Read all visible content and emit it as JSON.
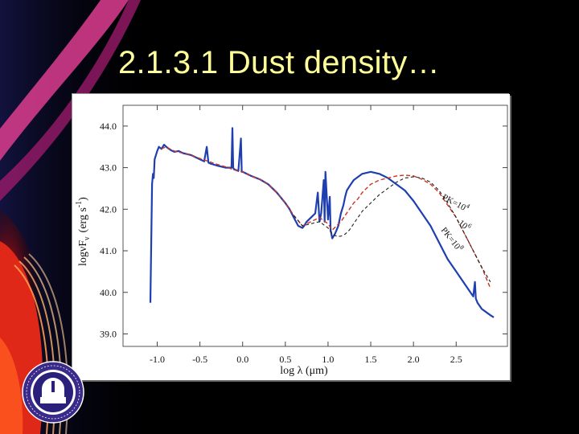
{
  "slide": {
    "title": "2.1.3.1 Dust density…"
  },
  "colors": {
    "title": "#ffff99",
    "background": "#000000",
    "blue": "#1f3fb0",
    "red": "#cc3322",
    "black": "#222222"
  },
  "logo": {
    "name": "university-seal"
  },
  "chart_data": {
    "type": "line",
    "xlabel": "log  λ  (μm)",
    "ylabel": "logνF",
    "ylabel_sub": "ν",
    "ylabel_units": "(erg s",
    "ylabel_units_sup": "-1",
    "ylabel_units_close": ")",
    "xlim": [
      -1.4,
      3.1
    ],
    "ylim": [
      38.7,
      44.5
    ],
    "xticks": [
      -1.0,
      -0.5,
      0.0,
      0.5,
      1.0,
      1.5,
      2.0,
      2.5
    ],
    "xtick_labels": [
      "-1.0",
      "-0.5",
      "0.0",
      "0.5",
      "1.0",
      "1.5",
      "2.0",
      "2.5"
    ],
    "yticks": [
      44,
      43,
      42,
      41,
      40,
      39
    ],
    "ytick_labels": [
      "44.0",
      "43.0",
      "42.0",
      "41.0",
      "40.0",
      "39.0"
    ],
    "annotations": [
      {
        "text": "PK=10",
        "sup": "4",
        "x": 2.33,
        "y": 42.25,
        "angle": 28
      },
      {
        "text": "10",
        "sup": "6",
        "x": 2.52,
        "y": 41.65,
        "angle": 40
      },
      {
        "text": "PK=10",
        "sup": "8",
        "x": 2.32,
        "y": 41.5,
        "angle": 52
      }
    ],
    "series": [
      {
        "color": "#1f3fb0",
        "x": [
          -1.08,
          -1.06,
          -1.05,
          -1.04,
          -1.03,
          -1.0,
          -0.98,
          -0.95,
          -0.92,
          -0.88,
          -0.84,
          -0.8,
          -0.75,
          -0.7,
          -0.6,
          -0.5,
          -0.45,
          -0.42,
          -0.4,
          -0.38,
          -0.3,
          -0.2,
          -0.13,
          -0.12,
          -0.11,
          -0.1,
          -0.05,
          -0.02,
          -0.01,
          0.0,
          0.1,
          0.2,
          0.3,
          0.4,
          0.5,
          0.55,
          0.6,
          0.65,
          0.7,
          0.72,
          0.75,
          0.8,
          0.85,
          0.88,
          0.9,
          0.92,
          0.95,
          0.96,
          0.97,
          1.0,
          1.02,
          1.03,
          1.05,
          1.08,
          1.1,
          1.12,
          1.15,
          1.18,
          1.2,
          1.22,
          1.25,
          1.3,
          1.4,
          1.5,
          1.6,
          1.7,
          1.8,
          1.9,
          2.0,
          2.1,
          2.2,
          2.3,
          2.4,
          2.5,
          2.6,
          2.7,
          2.72,
          2.73,
          2.75,
          2.8,
          2.9,
          2.94
        ],
        "y": [
          39.75,
          42.6,
          42.85,
          42.75,
          43.2,
          43.4,
          43.5,
          43.45,
          43.55,
          43.48,
          43.42,
          43.38,
          43.4,
          43.35,
          43.3,
          43.2,
          43.15,
          43.5,
          43.12,
          43.1,
          43.05,
          43.0,
          43.0,
          43.95,
          43.0,
          42.96,
          42.92,
          43.7,
          42.9,
          42.9,
          42.8,
          42.72,
          42.6,
          42.4,
          42.15,
          42.0,
          41.8,
          41.6,
          41.55,
          41.6,
          41.7,
          41.8,
          41.9,
          42.4,
          41.7,
          41.9,
          42.7,
          41.7,
          42.9,
          41.75,
          42.3,
          41.5,
          41.3,
          41.4,
          41.5,
          41.6,
          41.9,
          42.1,
          42.3,
          42.45,
          42.55,
          42.7,
          42.85,
          42.9,
          42.85,
          42.75,
          42.6,
          42.45,
          42.2,
          41.9,
          41.6,
          41.2,
          40.8,
          40.5,
          40.2,
          39.9,
          40.25,
          39.85,
          39.75,
          39.6,
          39.45,
          39.4
        ]
      },
      {
        "color": "#cc3322",
        "x": [
          -0.95,
          -0.9,
          -0.8,
          -0.7,
          -0.6,
          -0.5,
          -0.4,
          -0.3,
          -0.2,
          -0.1,
          0.0,
          0.1,
          0.2,
          0.3,
          0.4,
          0.5,
          0.6,
          0.7,
          0.8,
          0.9,
          1.0,
          1.05,
          1.1,
          1.15,
          1.2,
          1.25,
          1.3,
          1.35,
          1.4,
          1.45,
          1.5,
          1.6,
          1.7,
          1.8,
          1.9,
          2.0,
          2.1,
          2.2,
          2.3,
          2.4,
          2.5,
          2.6,
          2.7,
          2.8,
          2.9
        ],
        "y": [
          43.45,
          43.5,
          43.4,
          43.35,
          43.3,
          43.22,
          43.15,
          43.08,
          43.02,
          42.95,
          42.9,
          42.8,
          42.72,
          42.6,
          42.4,
          42.15,
          41.85,
          41.6,
          41.7,
          41.8,
          41.65,
          41.5,
          41.6,
          41.7,
          41.85,
          42.0,
          42.15,
          42.25,
          42.4,
          42.5,
          42.6,
          42.7,
          42.75,
          42.8,
          42.82,
          42.8,
          42.72,
          42.6,
          42.4,
          42.1,
          41.8,
          41.4,
          41.0,
          40.6,
          40.1
        ]
      },
      {
        "color": "#222222",
        "x": [
          0.6,
          0.7,
          0.8,
          0.9,
          1.0,
          1.05,
          1.1,
          1.15,
          1.2,
          1.25,
          1.3,
          1.35,
          1.4,
          1.5,
          1.6,
          1.7,
          1.8,
          1.9,
          2.0,
          2.1,
          2.2,
          2.3,
          2.4,
          2.5,
          2.6,
          2.7,
          2.8,
          2.9
        ],
        "y": [
          41.85,
          41.6,
          41.65,
          41.7,
          41.55,
          41.4,
          41.35,
          41.35,
          41.4,
          41.5,
          41.65,
          41.8,
          41.95,
          42.15,
          42.35,
          42.5,
          42.65,
          42.75,
          42.78,
          42.75,
          42.65,
          42.45,
          42.15,
          41.8,
          41.4,
          41.0,
          40.6,
          40.25
        ]
      }
    ]
  }
}
